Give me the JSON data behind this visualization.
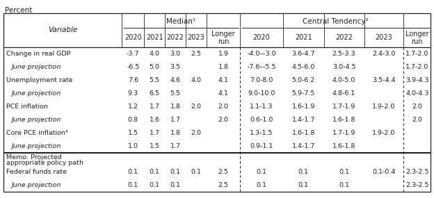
{
  "title": "Percent",
  "median_label": "Median¹",
  "ct_label": "Central Tendency²",
  "subheaders": [
    "Variable",
    "2020",
    "2021",
    "2022",
    "2023",
    "Longer\nrun",
    "2020",
    "2021",
    "2022",
    "2023",
    "Longer\nrun"
  ],
  "rows": [
    [
      "Change in real GDP",
      "-3.7",
      "4.0",
      "3.0",
      "2.5",
      "1.9",
      "-4.0–-3.0",
      "3.6-4.7",
      "2.5-3.3",
      "2.4-3.0",
      "1.7-2.0"
    ],
    [
      "June projection",
      "-6.5",
      "5.0",
      "3.5",
      "",
      "1.8",
      "-7.6–-5.5",
      "4.5-6.0",
      "3.0-4.5",
      "",
      "1.7-2.0"
    ],
    [
      "Unemployment rate",
      "7.6",
      "5.5",
      "4.6",
      "4.0",
      "4.1",
      "7.0-8.0",
      "5.0-6.2",
      "4.0-5.0",
      "3.5-4.4",
      "3.9-4.3"
    ],
    [
      "June projection",
      "9.3",
      "6.5",
      "5.5",
      "",
      "4.1",
      "9.0-10.0",
      "5.9-7.5",
      "4.8-6.1",
      "",
      "4.0-4.3"
    ],
    [
      "PCE inflation",
      "1.2",
      "1.7",
      "1.8",
      "2.0",
      "2.0",
      "1.1-1.3",
      "1.6-1.9",
      "1.7-1.9",
      "1.9-2.0",
      "2.0"
    ],
    [
      "June projection",
      "0.8",
      "1.6",
      "1.7",
      "",
      "2.0",
      "0.6-1.0",
      "1.4-1.7",
      "1.6-1.8",
      "",
      "2.0"
    ],
    [
      "Core PCE inflation⁴",
      "1.5",
      "1.7",
      "1.8",
      "2.0",
      "",
      "1.3-1.5",
      "1.6-1.8",
      "1.7-1.9",
      "1.9-2.0",
      ""
    ],
    [
      "June projection",
      "1.0",
      "1.5",
      "1.7",
      "",
      "",
      "0.9-1.1",
      "1.4-1.7",
      "1.6-1.8",
      "",
      ""
    ],
    [
      "Memo: Projected\nappropriate policy path",
      "",
      "",
      "",
      "",
      "",
      "",
      "",
      "",
      "",
      ""
    ],
    [
      "Federal funds rate",
      "0.1",
      "0.1",
      "0.1",
      "0.1",
      "2.5",
      "0.1",
      "0.1",
      "0.1",
      "0.1-0.4",
      "2.3-2.5"
    ],
    [
      "June projection",
      "0.1",
      "0.1",
      "0.1",
      "",
      "2.5",
      "0.1",
      "0.1",
      "0.1",
      "",
      "2.3-2.5"
    ]
  ],
  "is_projection": [
    false,
    true,
    false,
    true,
    false,
    true,
    false,
    true,
    false,
    false,
    true
  ],
  "background": "#ffffff",
  "text_color": "#231f20",
  "border_color": "#231f20"
}
